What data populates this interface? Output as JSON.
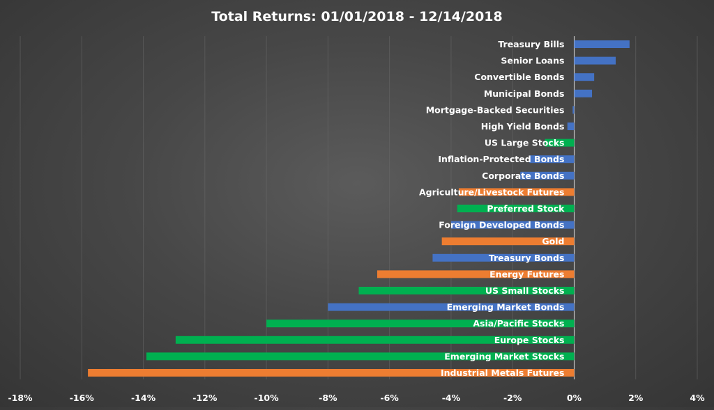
{
  "chart_data": {
    "type": "bar",
    "orientation": "horizontal",
    "title": "Total Returns: 01/01/2018 - 12/14/2018",
    "xlabel": "",
    "ylabel": "",
    "xlim": [
      -18,
      4
    ],
    "tick_values": [
      -18,
      -16,
      -14,
      -12,
      -10,
      -8,
      -6,
      -4,
      -2,
      0,
      2,
      4
    ],
    "tick_labels": [
      "-18%",
      "-16%",
      "-14%",
      "-12%",
      "-10%",
      "-8%",
      "-6%",
      "-4%",
      "-2%",
      "0%",
      "2%",
      "4%"
    ],
    "grid": true,
    "legend": "none",
    "colors": {
      "blue": "#4472c4",
      "green": "#00b050",
      "orange": "#ed7d31"
    },
    "categories": [
      "Treasury Bills",
      "Senior Loans",
      "Convertible Bonds",
      "Municipal Bonds",
      "Mortgage-Backed Securities",
      "High Yield Bonds",
      "US Large Stocks",
      "Inflation-Protected Bonds",
      "Corporate Bonds",
      "Agriculture/Livestock Futures",
      "Preferred Stock",
      "Foreign Developed Bonds",
      "Gold",
      "Treasury Bonds",
      "Energy Futures",
      "US Small Stocks",
      "Emerging Market Bonds",
      "Asia/Pacific Stocks",
      "Europe Stocks",
      "Emerging Market Stocks",
      "Industrial Metals Futures"
    ],
    "values": [
      1.8,
      1.35,
      0.65,
      0.58,
      -0.05,
      -0.22,
      -0.95,
      -1.45,
      -1.75,
      -3.75,
      -3.8,
      -4.0,
      -4.3,
      -4.6,
      -6.4,
      -7.0,
      -8.0,
      -10.0,
      -12.95,
      -13.9,
      -15.8
    ],
    "bar_colors": [
      "blue",
      "blue",
      "blue",
      "blue",
      "blue",
      "blue",
      "green",
      "blue",
      "blue",
      "orange",
      "green",
      "blue",
      "orange",
      "blue",
      "orange",
      "green",
      "blue",
      "green",
      "green",
      "green",
      "orange"
    ]
  }
}
